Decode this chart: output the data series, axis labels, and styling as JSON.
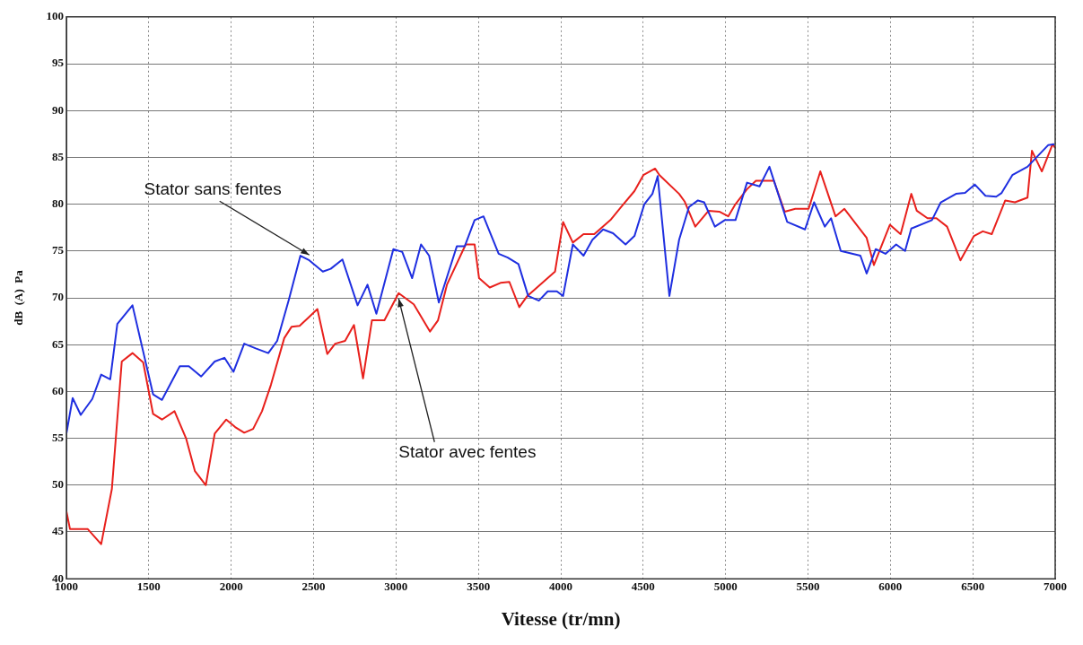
{
  "chart_data": {
    "type": "line",
    "xlabel": "Vitesse (tr/mn)",
    "ylabel": "dB  (A)  Pa",
    "xlim": [
      1000,
      7000
    ],
    "xticks": [
      1000,
      1500,
      2000,
      2500,
      3000,
      3500,
      4000,
      4500,
      5000,
      5500,
      6000,
      6500,
      7000
    ],
    "ylim": [
      40,
      100
    ],
    "yticks": [
      40,
      45,
      50,
      55,
      60,
      65,
      70,
      75,
      80,
      85,
      90,
      95,
      100
    ],
    "grid": true,
    "legend": false,
    "marker": "none",
    "line_style": "solid",
    "annotations": [
      {
        "text": "Stator sans fentes",
        "x": 2474,
        "y": 74.0
      },
      {
        "text": "Stator avec fentes",
        "x": 3016,
        "y": 70.5
      }
    ],
    "series": [
      {
        "color": "#1f2fe0",
        "x": [
          1000,
          1038,
          1087,
          1157,
          1211,
          1266,
          1309,
          1401,
          1526,
          1580,
          1688,
          1743,
          1818,
          1900,
          1959,
          2014,
          2079,
          2149,
          2225,
          2279,
          2350,
          2420,
          2474,
          2556,
          2604,
          2675,
          2767,
          2827,
          2881,
          2984,
          3038,
          3098,
          3152,
          3201,
          3260,
          3369,
          3417,
          3477,
          3531,
          3623,
          3678,
          3743,
          3802,
          3867,
          3921,
          3976,
          4014,
          4073,
          4138,
          4192,
          4257,
          4317,
          4393,
          4447,
          4507,
          4556,
          4588,
          4659,
          4718,
          4778,
          4832,
          4870,
          4935,
          4995,
          5060,
          5130,
          5206,
          5266,
          5374,
          5482,
          5537,
          5602,
          5640,
          5699,
          5818,
          5856,
          5911,
          5970,
          6035,
          6089,
          6127,
          6252,
          6306,
          6398,
          6453,
          6512,
          6577,
          6642,
          6675,
          6740,
          6832,
          6957,
          6995
        ],
        "values": [
          55.5,
          59.3,
          57.5,
          59.2,
          61.8,
          61.3,
          67.2,
          69.2,
          59.7,
          59.1,
          62.7,
          62.7,
          61.6,
          63.2,
          63.6,
          62.1,
          65.1,
          64.6,
          64.1,
          65.4,
          69.8,
          74.5,
          74.0,
          72.8,
          73.1,
          74.1,
          69.2,
          71.4,
          68.3,
          75.2,
          74.9,
          72.1,
          75.7,
          74.5,
          69.5,
          75.5,
          75.5,
          78.3,
          78.7,
          74.7,
          74.3,
          73.6,
          70.2,
          69.7,
          70.7,
          70.7,
          70.2,
          75.7,
          74.5,
          76.2,
          77.3,
          76.9,
          75.7,
          76.6,
          80.0,
          81.1,
          83.0,
          70.2,
          76.2,
          79.7,
          80.4,
          80.2,
          77.6,
          78.3,
          78.3,
          82.3,
          81.9,
          84.0,
          78.1,
          77.3,
          80.2,
          77.6,
          78.5,
          75.0,
          74.5,
          72.6,
          75.2,
          74.7,
          75.7,
          75.0,
          77.4,
          78.3,
          80.2,
          81.1,
          81.2,
          82.1,
          80.9,
          80.8,
          81.2,
          83.1,
          84.0,
          86.3,
          86.4
        ]
      },
      {
        "color": "#e8201c",
        "x": [
          1000,
          1022,
          1130,
          1211,
          1276,
          1336,
          1401,
          1466,
          1526,
          1580,
          1656,
          1726,
          1780,
          1846,
          1900,
          1970,
          2024,
          2079,
          2133,
          2187,
          2241,
          2322,
          2366,
          2415,
          2469,
          2523,
          2583,
          2631,
          2691,
          2745,
          2800,
          2854,
          2930,
          3016,
          3108,
          3206,
          3255,
          3309,
          3423,
          3477,
          3504,
          3569,
          3634,
          3688,
          3748,
          3797,
          3965,
          4014,
          4073,
          4138,
          4203,
          4301,
          4371,
          4447,
          4501,
          4572,
          4599,
          4718,
          4751,
          4816,
          4897,
          4962,
          5016,
          5060,
          5130,
          5184,
          5293,
          5358,
          5423,
          5504,
          5575,
          5667,
          5721,
          5856,
          5900,
          5997,
          6062,
          6127,
          6160,
          6225,
          6279,
          6344,
          6425,
          6507,
          6561,
          6615,
          6697,
          6756,
          6832,
          6859,
          6919,
          6984,
          7000
        ],
        "values": [
          47.2,
          45.3,
          45.3,
          43.7,
          49.6,
          63.2,
          64.1,
          63.1,
          57.6,
          57.0,
          57.9,
          55.0,
          51.5,
          50.0,
          55.5,
          57.0,
          56.2,
          55.6,
          56.0,
          57.9,
          60.7,
          65.7,
          66.9,
          67.0,
          67.9,
          68.8,
          64.0,
          65.1,
          65.4,
          67.1,
          61.4,
          67.6,
          67.6,
          70.5,
          69.3,
          66.4,
          67.6,
          71.4,
          75.7,
          75.7,
          72.1,
          71.1,
          71.6,
          71.7,
          69.0,
          70.2,
          72.8,
          78.1,
          75.9,
          76.8,
          76.8,
          78.3,
          79.8,
          81.4,
          83.1,
          83.8,
          83.1,
          81.1,
          80.3,
          77.6,
          79.3,
          79.2,
          78.7,
          80.0,
          81.6,
          82.5,
          82.5,
          79.2,
          79.5,
          79.5,
          83.5,
          78.7,
          79.5,
          76.4,
          73.5,
          77.8,
          76.8,
          81.1,
          79.3,
          78.5,
          78.5,
          77.6,
          74.0,
          76.6,
          77.1,
          76.8,
          80.4,
          80.2,
          80.7,
          85.7,
          83.5,
          86.4,
          86.0
        ]
      }
    ]
  }
}
